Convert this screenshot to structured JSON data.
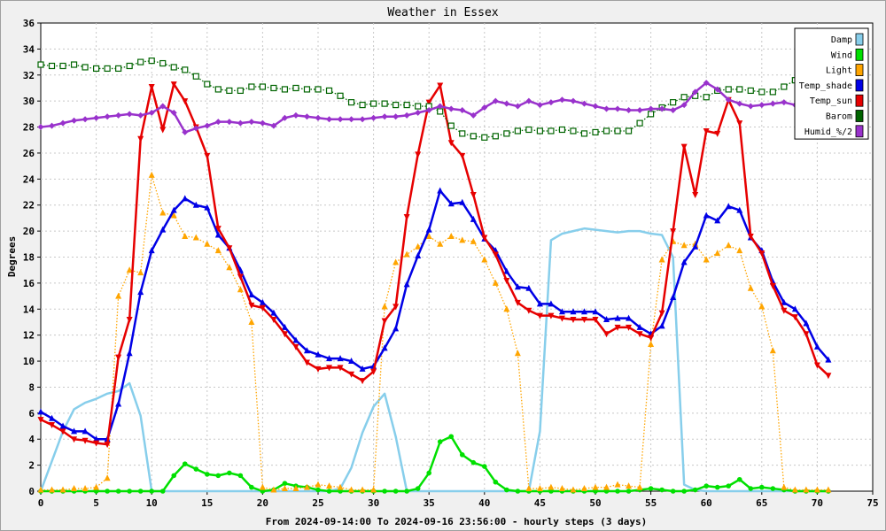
{
  "chart_data": {
    "type": "line",
    "title": "Weather in Essex",
    "xlabel": "From 2024-09-14:00 To 2024-09-16 23:56:00 - hourly steps (3 days)",
    "ylabel": "Degrees",
    "xlim": [
      0,
      75
    ],
    "ylim": [
      0,
      36
    ],
    "xticks": [
      0,
      5,
      10,
      15,
      20,
      25,
      30,
      35,
      40,
      45,
      50,
      55,
      60,
      65,
      70,
      75
    ],
    "yticks": [
      0,
      2,
      4,
      6,
      8,
      10,
      12,
      14,
      16,
      18,
      20,
      22,
      24,
      26,
      28,
      30,
      32,
      34,
      36
    ],
    "grid": true,
    "legend": "top-right",
    "series": [
      {
        "name": "Damp",
        "color": "#87ceeb",
        "marker": "none",
        "dotted": false,
        "values": [
          0,
          2.3,
          4.6,
          6.3,
          6.8,
          7.1,
          7.5,
          7.7,
          8.3,
          5.8,
          0,
          0,
          0,
          0,
          0,
          0,
          0,
          0,
          0,
          0,
          0,
          0,
          0,
          0,
          0,
          0,
          0,
          0.2,
          1.8,
          4.5,
          6.5,
          7.5,
          4.2,
          0,
          0,
          0,
          0,
          0,
          0,
          0,
          0,
          0,
          0,
          0,
          0,
          4.6,
          19.3,
          19.8,
          20.0,
          20.2,
          20.1,
          20.0,
          19.9,
          20.0,
          20.0,
          19.8,
          19.7,
          18.0,
          0.5,
          0.1,
          0,
          0,
          0,
          0,
          0,
          0,
          0,
          0,
          0,
          0,
          0,
          0
        ]
      },
      {
        "name": "Wind",
        "color": "#00e000",
        "marker": "circle",
        "dotted": false,
        "values": [
          0,
          0,
          0,
          0,
          0,
          0,
          0,
          0,
          0,
          0,
          0,
          0,
          1.2,
          2.1,
          1.7,
          1.3,
          1.2,
          1.4,
          1.2,
          0.3,
          0,
          0.1,
          0.6,
          0.4,
          0.3,
          0.1,
          0,
          0,
          0,
          0,
          0,
          0,
          0,
          0,
          0.2,
          1.4,
          3.8,
          4.2,
          2.8,
          2.2,
          1.9,
          0.7,
          0.1,
          0,
          0,
          0,
          0,
          0,
          0,
          0,
          0,
          0,
          0,
          0,
          0.1,
          0.2,
          0.1,
          0,
          0,
          0.1,
          0.4,
          0.3,
          0.4,
          0.9,
          0.2,
          0.3,
          0.2,
          0.1,
          0,
          0,
          0,
          0
        ]
      },
      {
        "name": "Light",
        "color": "#ffa500",
        "marker": "triangle-up",
        "dotted": true,
        "values": [
          0.1,
          0.1,
          0.1,
          0.2,
          0.2,
          0.3,
          1.0,
          15.0,
          17.0,
          16.8,
          24.3,
          21.4,
          21.2,
          19.6,
          19.5,
          19.0,
          18.5,
          17.2,
          15.5,
          13.0,
          0.3,
          0.1,
          0.2,
          0.2,
          0.3,
          0.5,
          0.4,
          0.3,
          0.1,
          0.1,
          0.1,
          14.2,
          17.6,
          18.2,
          18.8,
          19.6,
          19.0,
          19.6,
          19.3,
          19.2,
          17.8,
          16.0,
          14.0,
          10.6,
          0.2,
          0.2,
          0.3,
          0.2,
          0.1,
          0.2,
          0.3,
          0.3,
          0.5,
          0.4,
          0.3,
          11.3,
          17.8,
          19.2,
          18.9,
          19.0,
          17.8,
          18.3,
          18.9,
          18.5,
          15.6,
          14.2,
          10.8,
          0.3,
          0.1,
          0.1,
          0.1,
          0.1
        ]
      },
      {
        "name": "Temp_shade",
        "color": "#0000e6",
        "marker": "triangle-up",
        "dotted": false,
        "values": [
          6.1,
          5.6,
          5.0,
          4.6,
          4.6,
          4.0,
          4.0,
          6.7,
          10.6,
          15.3,
          18.5,
          20.1,
          21.6,
          22.5,
          22.0,
          21.8,
          19.7,
          18.7,
          17.0,
          15.1,
          14.5,
          13.7,
          12.6,
          11.6,
          10.8,
          10.5,
          10.2,
          10.2,
          10.0,
          9.4,
          9.6,
          11.0,
          12.5,
          15.9,
          18.1,
          20.1,
          23.1,
          22.1,
          22.2,
          20.9,
          19.4,
          18.5,
          16.9,
          15.7,
          15.6,
          14.4,
          14.4,
          13.8,
          13.8,
          13.8,
          13.8,
          13.2,
          13.3,
          13.3,
          12.6,
          12.1,
          12.7,
          14.9,
          17.6,
          18.8,
          21.2,
          20.8,
          21.9,
          21.6,
          19.5,
          18.5,
          16.1,
          14.5,
          14.0,
          12.9,
          11.1,
          10.1
        ]
      },
      {
        "name": "Temp_sun",
        "color": "#e60000",
        "marker": "triangle-down",
        "dotted": false,
        "values": [
          5.5,
          5.1,
          4.6,
          4.0,
          3.9,
          3.7,
          3.6,
          10.3,
          13.2,
          27.1,
          31.1,
          27.8,
          31.3,
          30.0,
          28.0,
          25.8,
          20.2,
          18.7,
          16.5,
          14.3,
          14.1,
          13.2,
          12.1,
          11.1,
          9.9,
          9.4,
          9.5,
          9.5,
          9.0,
          8.5,
          9.2,
          13.1,
          14.2,
          21.1,
          25.9,
          29.9,
          31.2,
          26.8,
          25.8,
          22.8,
          19.5,
          18.2,
          16.2,
          14.5,
          13.9,
          13.5,
          13.5,
          13.3,
          13.2,
          13.2,
          13.2,
          12.1,
          12.6,
          12.6,
          12.1,
          11.8,
          13.7,
          20.0,
          26.5,
          22.8,
          27.7,
          27.5,
          30.1,
          28.3,
          19.6,
          18.3,
          15.8,
          13.9,
          13.4,
          12.1,
          9.7,
          8.9
        ]
      },
      {
        "name": "Barom",
        "color": "#006400",
        "marker": "square-open",
        "dotted": true,
        "values": [
          32.8,
          32.7,
          32.7,
          32.8,
          32.6,
          32.5,
          32.5,
          32.5,
          32.7,
          33.0,
          33.1,
          32.9,
          32.6,
          32.4,
          31.9,
          31.3,
          30.9,
          30.8,
          30.8,
          31.1,
          31.1,
          31.0,
          30.9,
          31.0,
          30.9,
          30.9,
          30.8,
          30.4,
          29.9,
          29.7,
          29.8,
          29.8,
          29.7,
          29.7,
          29.6,
          29.6,
          29.2,
          28.1,
          27.5,
          27.3,
          27.2,
          27.3,
          27.5,
          27.7,
          27.8,
          27.7,
          27.7,
          27.8,
          27.7,
          27.5,
          27.6,
          27.7,
          27.7,
          27.7,
          28.3,
          29.0,
          29.5,
          29.9,
          30.3,
          30.4,
          30.3,
          30.8,
          30.9,
          30.9,
          30.8,
          30.7,
          30.7,
          31.1,
          31.6,
          32.1,
          32.5,
          32.9
        ]
      },
      {
        "name": "Humid_%/2",
        "color": "#9932cc",
        "marker": "diamond",
        "dotted": false,
        "values": [
          28.0,
          28.1,
          28.3,
          28.5,
          28.6,
          28.7,
          28.8,
          28.9,
          29.0,
          28.9,
          29.1,
          29.6,
          29.1,
          27.6,
          27.9,
          28.1,
          28.4,
          28.4,
          28.3,
          28.4,
          28.3,
          28.1,
          28.7,
          28.9,
          28.8,
          28.7,
          28.6,
          28.6,
          28.6,
          28.6,
          28.7,
          28.8,
          28.8,
          28.9,
          29.1,
          29.3,
          29.6,
          29.4,
          29.3,
          28.9,
          29.5,
          30.0,
          29.8,
          29.6,
          30.0,
          29.7,
          29.9,
          30.1,
          30.0,
          29.8,
          29.6,
          29.4,
          29.4,
          29.3,
          29.3,
          29.4,
          29.4,
          29.3,
          29.7,
          30.7,
          31.4,
          30.9,
          30.1,
          29.8,
          29.6,
          29.7,
          29.8,
          29.9,
          29.7,
          29.7,
          29.6,
          29.5
        ]
      }
    ]
  }
}
